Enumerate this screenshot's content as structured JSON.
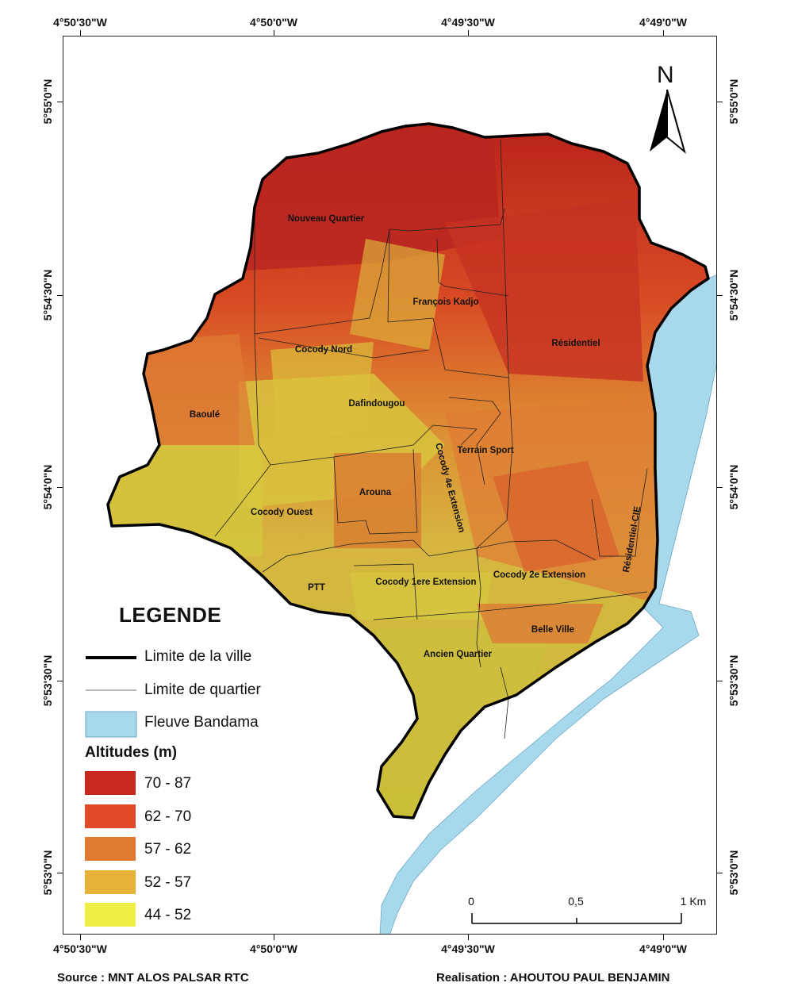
{
  "coords": {
    "top": [
      "4°50'30\"W",
      "4°50'0\"W",
      "4°49'30\"W",
      "4°49'0\"W"
    ],
    "bottom": [
      "4°50'30\"W",
      "4°50'0\"W",
      "4°49'30\"W",
      "4°49'0\"W"
    ],
    "left": [
      "5°55'0\"N",
      "5°54'30\"N",
      "5°54'0\"N",
      "5°53'30\"N",
      "5°53'0\"N"
    ],
    "right": [
      "5°55'0\"N",
      "5°54'30\"N",
      "5°54'0\"N",
      "5°53'30\"N",
      "5°53'0\"N"
    ]
  },
  "north_arrow": {
    "label": "N"
  },
  "quartiers": [
    "Nouveau Quartier",
    "François Kadjo",
    "Résidentiel",
    "Cocody Nord",
    "Dafindougou",
    "Baoulé",
    "Terrain Sport",
    "Cocody 4e Extension",
    "Arouna",
    "Cocody Ouest",
    "Résidentiel-CIE",
    "PTT",
    "Cocody 1ere Extension",
    "Cocody 2e Extension",
    "Belle Ville",
    "Ancien Quartier"
  ],
  "legend": {
    "title": "LEGENDE",
    "city_limit": "Limite de la ville",
    "quarter_limit": "Limite de quartier",
    "river": "Fleuve Bandama",
    "altitude_title": "Altitudes (m)",
    "classes": [
      {
        "label": "70 - 87",
        "color": "#c8281e"
      },
      {
        "label": "62 - 70",
        "color": "#e04a28"
      },
      {
        "label": "57 - 62",
        "color": "#e07a32"
      },
      {
        "label": "52 - 57",
        "color": "#e6b43a"
      },
      {
        "label": "44 - 52",
        "color": "#eef046"
      }
    ]
  },
  "colors": {
    "river": "#a8d8ec",
    "city_limit": "#000000"
  },
  "scale_bar": {
    "labels": [
      "0",
      "0,5",
      "1 Km"
    ]
  },
  "footer": {
    "source": "Source : MNT ALOS PALSAR RTC",
    "author": "Realisation : AHOUTOU PAUL BENJAMIN"
  }
}
